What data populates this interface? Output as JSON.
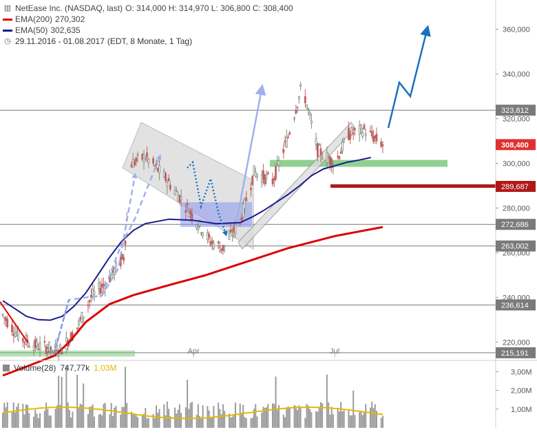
{
  "header": {
    "instrument": "NetEase Inc. (NASDAQ, last)",
    "ohlc": "O: 314,000  H: 314,970  L: 306,800  C: 308,400",
    "ema200_label": "EMA(200)",
    "ema200_value": "270,302",
    "ema50_label": "EMA(50)",
    "ema50_value": "302,635",
    "period": "29.11.2016 - 01.08.2017",
    "period_detail": "(EDT, 8 Monate, 1 Tag)"
  },
  "volume_legend": {
    "label": "Volume(28)",
    "value": "747,77k",
    "avg_value": "1,03M"
  },
  "colors": {
    "ema200": "#dd0000",
    "ema50": "#1a1a8c",
    "candle_up": "#7a8a7a",
    "candle_down": "#c06060",
    "support_green": "#7cc87c",
    "resistance_red": "#b01818",
    "arrow_blue": "#1a6fbf",
    "arrow_light": "#9fb0ee",
    "current_price_bg": "#e03030"
  },
  "chart_data": {
    "type": "candlestick",
    "date_range": [
      "2016-11-29",
      "2017-08-01"
    ],
    "x_tick_labels": [
      "Jan 17",
      "Apr",
      "Jul"
    ],
    "y_axis": {
      "range": [
        213000,
        367000
      ],
      "tick_labels": [
        "360,000",
        "340,000",
        "320,000",
        "300,000",
        "280,000",
        "260,000",
        "240,000",
        "220,000"
      ],
      "ticks": [
        360000,
        340000,
        320000,
        300000,
        280000,
        260000,
        240000,
        220000
      ]
    },
    "horizontal_levels": [
      {
        "value": 323812,
        "label": "323,812"
      },
      {
        "value": 272686,
        "label": "272,686"
      },
      {
        "value": 263002,
        "label": "263,002"
      },
      {
        "value": 236614,
        "label": "236,614"
      },
      {
        "value": 215191,
        "label": "215,191"
      }
    ],
    "support_zone": {
      "value": 300000
    },
    "resistance_line": {
      "value": 289687,
      "label": "289,687"
    },
    "current_price": {
      "value": 308400,
      "label": "308,400"
    },
    "ema200_path": [
      [
        0.0,
        205000
      ],
      [
        0.1,
        209000
      ],
      [
        0.16,
        211500
      ],
      [
        0.22,
        214000
      ],
      [
        0.28,
        220000
      ],
      [
        0.35,
        229000
      ],
      [
        0.45,
        237000
      ],
      [
        0.55,
        241000
      ],
      [
        0.7,
        245500
      ],
      [
        0.85,
        249800
      ],
      [
        1.0,
        255000
      ],
      [
        1.2,
        262000
      ],
      [
        1.4,
        267500
      ],
      [
        1.6,
        271500
      ]
    ],
    "ema50_path": [
      [
        0.0,
        238500
      ],
      [
        0.05,
        235000
      ],
      [
        0.1,
        231500
      ],
      [
        0.15,
        230000
      ],
      [
        0.2,
        229800
      ],
      [
        0.25,
        231500
      ],
      [
        0.3,
        236000
      ],
      [
        0.35,
        242000
      ],
      [
        0.4,
        250000
      ],
      [
        0.45,
        258000
      ],
      [
        0.5,
        265000
      ],
      [
        0.55,
        270000
      ],
      [
        0.6,
        273000
      ],
      [
        0.7,
        275000
      ],
      [
        0.8,
        274500
      ],
      [
        0.9,
        273000
      ],
      [
        1.0,
        273500
      ],
      [
        1.05,
        276000
      ],
      [
        1.1,
        279000
      ],
      [
        1.15,
        282500
      ],
      [
        1.2,
        286000
      ],
      [
        1.25,
        290000
      ],
      [
        1.3,
        294500
      ],
      [
        1.35,
        297500
      ],
      [
        1.4,
        299000
      ],
      [
        1.45,
        300500
      ],
      [
        1.5,
        301500
      ],
      [
        1.55,
        302635
      ]
    ],
    "volume_axis": {
      "range": [
        0,
        3600000
      ],
      "tick_labels": [
        "3,00M",
        "2,00M",
        "1,00M"
      ],
      "ticks": [
        3000000,
        2000000,
        1000000
      ]
    }
  }
}
